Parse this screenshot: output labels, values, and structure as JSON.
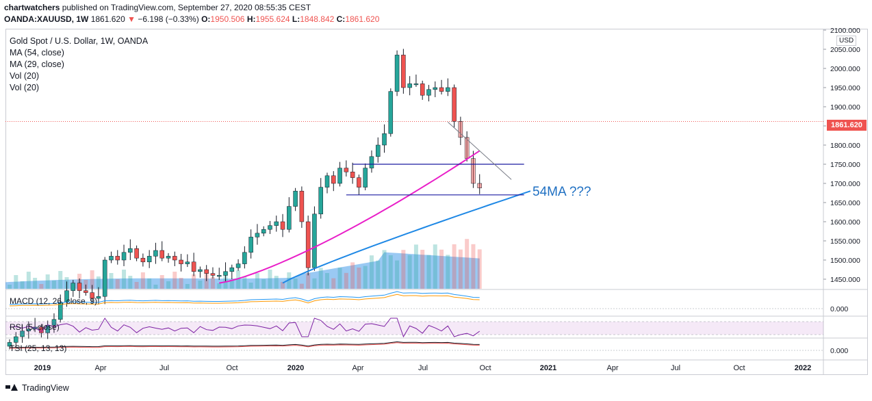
{
  "header": {
    "user": "chartwatchers",
    "published": " published on TradingView.com, September 27, 2020 08:55:35 CEST",
    "symbol": "OANDA:XAUUSD, 1W",
    "last": "1861.620",
    "change": "−6.198 (−0.33%)",
    "o_label": "O:",
    "o_val": "1950.506",
    "h_label": "H:",
    "h_val": "1955.624",
    "l_label": "L:",
    "l_val": "1848.842",
    "c_label": "C:",
    "c_val": "1861.620"
  },
  "legend": {
    "title": "Gold Spot / U.S. Dollar, 1W, OANDA",
    "ma54": "MA (54, close)",
    "ma29": "MA (29, close)",
    "vol1": "Vol (20)",
    "vol2": "Vol (20)"
  },
  "panes": {
    "macd": "MACD (12, 26, close, 9)",
    "rsi": "RSI (5, close)",
    "tsi": "TSI (25, 13, 13)"
  },
  "annotation": "54MA ???",
  "price_tag": "1861.620",
  "currency": "USD",
  "footer": "TradingView",
  "colors": {
    "up": "#26a69a",
    "down": "#ef5350",
    "ma29": "#e91ec8",
    "ma54": "#1e88e5",
    "vol_area": "#1e88e5",
    "horizontal_lines": "#1a1aa0"
  },
  "chart_data": [
    {
      "type": "candlestick",
      "title": "Gold Spot / U.S. Dollar, 1W, OANDA",
      "ylim": [
        1425,
        2100
      ],
      "y_ticks": [
        1450,
        1500,
        1550,
        1600,
        1650,
        1700,
        1750,
        1800,
        1850,
        1900,
        1950,
        2000,
        2050,
        2100
      ],
      "y_tick_labels": [
        "1450.000",
        "1500.000",
        "1550.000",
        "1600.000",
        "1650.000",
        "1700.000",
        "1750.000",
        "1800.000",
        "1850.000",
        "1900.000",
        "1950.000",
        "2000.000",
        "2050.000",
        "2100.000"
      ],
      "x_tick_labels": [
        "2019",
        "Apr",
        "Jul",
        "Oct",
        "2020",
        "Apr",
        "Jul",
        "Oct",
        "2021",
        "Apr",
        "Jul",
        "Oct",
        "2022"
      ],
      "last_price": 1861.62,
      "candles_close": [
        1285,
        1300,
        1315,
        1320,
        1325,
        1310,
        1330,
        1345,
        1390,
        1420,
        1440,
        1420,
        1415,
        1400,
        1405,
        1500,
        1510,
        1500,
        1520,
        1530,
        1505,
        1495,
        1510,
        1525,
        1505,
        1510,
        1500,
        1490,
        1495,
        1470,
        1475,
        1465,
        1460,
        1460,
        1470,
        1480,
        1490,
        1520,
        1560,
        1570,
        1580,
        1590,
        1600,
        1580,
        1640,
        1680,
        1600,
        1480,
        1620,
        1690,
        1720,
        1700,
        1740,
        1730,
        1715,
        1690,
        1740,
        1770,
        1800,
        1830,
        1940,
        2035,
        1950,
        1960,
        1960,
        1930,
        1945,
        1950,
        1940,
        1950,
        1862,
        1820,
        1765,
        1700,
        1688
      ],
      "overlay_lines": [
        {
          "name": "MA (29, close)",
          "color": "#e91ec8",
          "x_index_range": [
            33,
            74
          ],
          "y_range": [
            1440,
            1785
          ]
        },
        {
          "name": "MA (54, close)",
          "color": "#1e88e5",
          "x_index_range": [
            43,
            82
          ],
          "y_range": [
            1440,
            1680
          ]
        }
      ],
      "horizontal_levels": [
        1750,
        1670
      ],
      "annotation": "54MA ???"
    },
    {
      "type": "line",
      "title": "MACD (12, 26, close, 9)",
      "y_tick_labels": [
        "0.000"
      ]
    },
    {
      "type": "line",
      "title": "RSI (5, close)"
    },
    {
      "type": "line",
      "title": "TSI (25, 13, 13)",
      "y_tick_labels": [
        "0.000"
      ]
    }
  ]
}
